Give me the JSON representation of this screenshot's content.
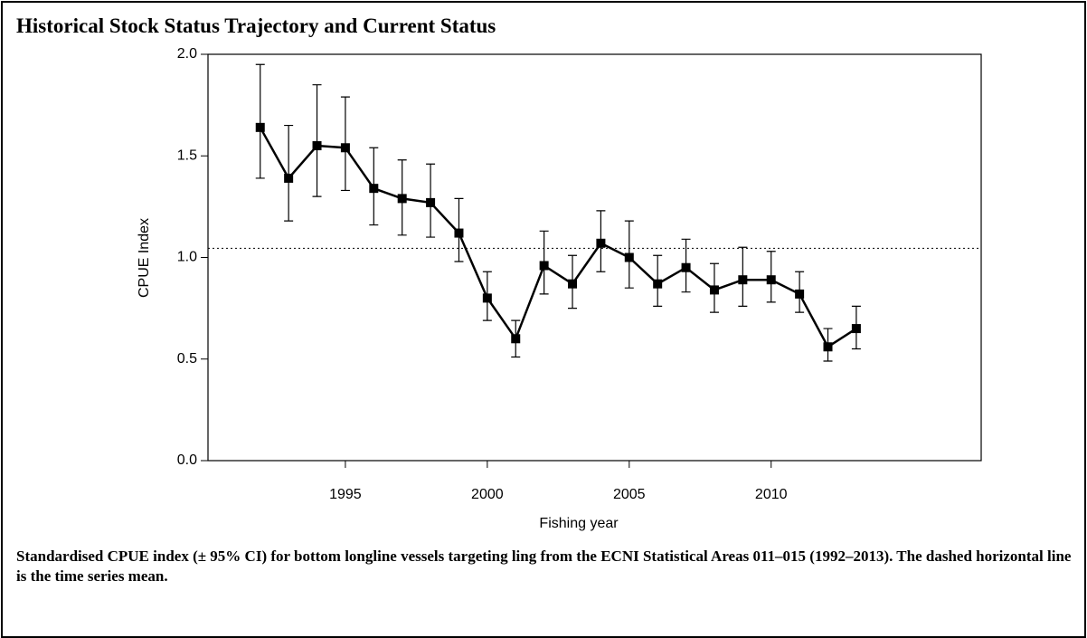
{
  "chart_data": {
    "type": "line",
    "title": "Historical Stock Status Trajectory and Current Status",
    "caption": "Standardised CPUE index (± 95% CI) for bottom longline vessels targeting ling from the ECNI Statistical Areas 011–015 (1992–2013). The dashed horizontal line is the time series mean.",
    "xlabel": "Fishing year",
    "ylabel": "CPUE Index",
    "x": [
      1992,
      1993,
      1994,
      1995,
      1996,
      1997,
      1998,
      1999,
      2000,
      2001,
      2002,
      2003,
      2004,
      2005,
      2006,
      2007,
      2008,
      2009,
      2010,
      2011,
      2012,
      2013
    ],
    "series": [
      {
        "name": "CPUE index",
        "color": "#000000",
        "values": [
          1.64,
          1.39,
          1.55,
          1.54,
          1.34,
          1.29,
          1.27,
          1.12,
          0.8,
          0.6,
          0.96,
          0.87,
          1.07,
          1.0,
          0.87,
          0.95,
          0.84,
          0.89,
          0.89,
          0.82,
          0.56,
          0.65
        ],
        "lower": [
          1.39,
          1.18,
          1.3,
          1.33,
          1.16,
          1.11,
          1.1,
          0.98,
          0.69,
          0.51,
          0.82,
          0.75,
          0.93,
          0.85,
          0.76,
          0.83,
          0.73,
          0.76,
          0.78,
          0.73,
          0.49,
          0.55
        ],
        "upper": [
          1.95,
          1.65,
          1.85,
          1.79,
          1.54,
          1.48,
          1.46,
          1.29,
          0.93,
          0.69,
          1.13,
          1.01,
          1.23,
          1.18,
          1.01,
          1.09,
          0.97,
          1.05,
          1.03,
          0.93,
          0.65,
          0.76
        ]
      }
    ],
    "mean_line": 1.045,
    "xlim": [
      1990.16,
      2017.4
    ],
    "xticks": [
      1995,
      2000,
      2005,
      2010
    ],
    "ylim": [
      0,
      2
    ],
    "yticks": [
      {
        "value": 0,
        "label": "0.0"
      },
      {
        "value": 0.5,
        "label": "0.5"
      },
      {
        "value": 1,
        "label": "1.0"
      },
      {
        "value": 1.5,
        "label": "1.5"
      },
      {
        "value": 2,
        "label": "2.0"
      }
    ],
    "grid": false
  }
}
